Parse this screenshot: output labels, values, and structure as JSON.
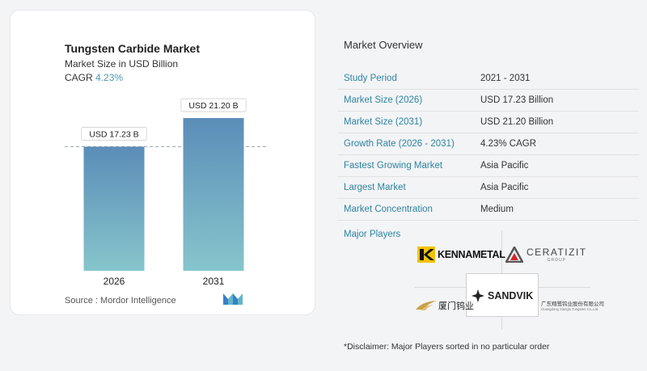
{
  "chart_data": {
    "type": "bar",
    "title": "Tungsten Carbide Market",
    "subtitle": "Market Size in USD Billion",
    "cagr_label": "CAGR",
    "cagr_value": "4.23%",
    "categories": [
      "2026",
      "2031"
    ],
    "values": [
      17.23,
      21.2
    ],
    "data_labels": [
      "USD 17.23 B",
      "USD 21.20 B"
    ],
    "ylim": [
      0,
      23
    ],
    "reference_line_value": 17.23,
    "colors": {
      "bar_top": "#5b8db8",
      "bar_bottom": "#86c5cc",
      "reference_line": "#9aa3ab"
    }
  },
  "source": {
    "prefix": "Source :",
    "name": "Mordor Intelligence"
  },
  "overview": {
    "title": "Market Overview",
    "rows": [
      {
        "label": "Study Period",
        "value": "2021 - 2031"
      },
      {
        "label": "Market Size (2026)",
        "value": "USD 17.23 Billion"
      },
      {
        "label": "Market Size (2031)",
        "value": "USD 21.20 Billion"
      },
      {
        "label": "Growth Rate (2026 - 2031)",
        "value": "4.23% CAGR"
      },
      {
        "label": "Fastest Growing Market",
        "value": "Asia Pacific"
      },
      {
        "label": "Largest Market",
        "value": "Asia Pacific"
      },
      {
        "label": "Market Concentration",
        "value": "Medium"
      }
    ],
    "players_label": "Major Players",
    "players": [
      "KENNAMETAL",
      "CERATIZIT",
      "SANDVIK",
      "厦门钨业",
      "广东翔鹭钨业股份有限公司"
    ],
    "ceratizit_sub": "GROUP",
    "xiangglu_sub": "Guangdong Xianglu Tungsten Co.,Ltd.",
    "disclaimer": "*Disclaimer: Major Players sorted in no particular order"
  },
  "colors": {
    "accent": "#2e84a0",
    "cagr": "#4d9ab0",
    "kennametal_yellow": "#f2c300",
    "ceratizit_red": "#d4262d",
    "xtc_gold": "#c9a14a"
  }
}
